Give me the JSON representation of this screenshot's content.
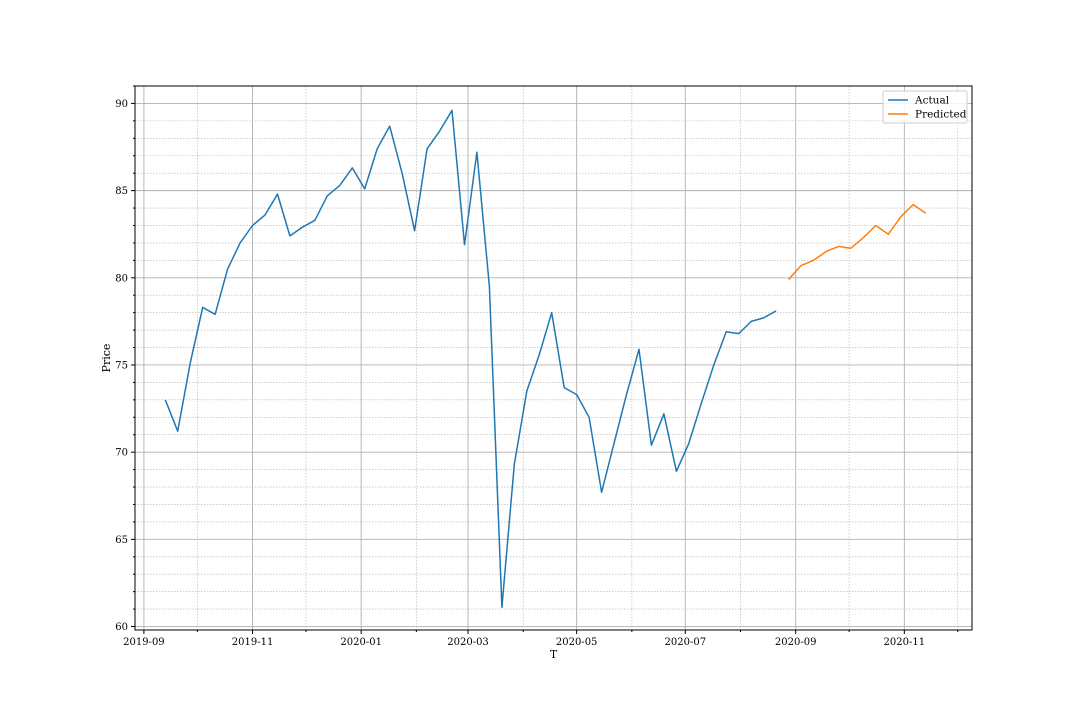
{
  "chart_data": {
    "type": "line",
    "title": "",
    "xlabel": "T",
    "ylabel": "Price",
    "x_scale": "date",
    "xlim": [
      "2019-08-27",
      "2020-12-09"
    ],
    "ylim": [
      59.8,
      91.0
    ],
    "x_ticks": [
      "2019-09-01",
      "2019-11-01",
      "2020-01-01",
      "2020-03-01",
      "2020-05-01",
      "2020-07-01",
      "2020-09-01",
      "2020-11-01"
    ],
    "x_tick_labels": [
      "2019-09",
      "2019-11",
      "2020-01",
      "2020-03",
      "2020-05",
      "2020-07",
      "2020-09",
      "2020-11"
    ],
    "y_ticks": [
      60,
      65,
      70,
      75,
      80,
      85,
      90
    ],
    "y_tick_labels": [
      "60",
      "65",
      "70",
      "75",
      "80",
      "85",
      "90"
    ],
    "grid": {
      "major": true,
      "minor": true
    },
    "legend_position": "top-right",
    "series": [
      {
        "name": "Actual",
        "color": "#1f77b4",
        "x": [
          "2019-09-13",
          "2019-09-20",
          "2019-09-27",
          "2019-10-04",
          "2019-10-11",
          "2019-10-18",
          "2019-10-25",
          "2019-11-01",
          "2019-11-08",
          "2019-11-15",
          "2019-11-22",
          "2019-11-29",
          "2019-12-06",
          "2019-12-13",
          "2019-12-20",
          "2019-12-27",
          "2020-01-03",
          "2020-01-10",
          "2020-01-17",
          "2020-01-24",
          "2020-01-31",
          "2020-02-07",
          "2020-02-14",
          "2020-02-21",
          "2020-02-28",
          "2020-03-06",
          "2020-03-13",
          "2020-03-20",
          "2020-03-27",
          "2020-04-03",
          "2020-04-10",
          "2020-04-17",
          "2020-04-24",
          "2020-05-01",
          "2020-05-08",
          "2020-05-15",
          "2020-05-22",
          "2020-05-29",
          "2020-06-05",
          "2020-06-12",
          "2020-06-19",
          "2020-06-26",
          "2020-07-03",
          "2020-07-10",
          "2020-07-17",
          "2020-07-24",
          "2020-07-31",
          "2020-08-07",
          "2020-08-14",
          "2020-08-21"
        ],
        "y": [
          73.0,
          71.2,
          75.1,
          78.3,
          77.9,
          80.5,
          82.0,
          83.0,
          83.6,
          84.8,
          82.4,
          82.9,
          83.3,
          84.7,
          85.3,
          86.3,
          85.1,
          87.4,
          88.7,
          86.0,
          82.7,
          87.4,
          88.4,
          89.6,
          81.9,
          87.2,
          79.5,
          61.1,
          69.3,
          73.5,
          75.6,
          78.0,
          73.7,
          73.3,
          72.0,
          67.7,
          70.5,
          73.3,
          75.9,
          70.4,
          72.2,
          68.9,
          70.5,
          72.8,
          75.0,
          76.9,
          76.8,
          77.5,
          77.7,
          78.1
        ]
      },
      {
        "name": "Predicted",
        "color": "#ff7f0e",
        "x": [
          "2020-08-28",
          "2020-09-04",
          "2020-09-11",
          "2020-09-18",
          "2020-09-25",
          "2020-10-02",
          "2020-10-09",
          "2020-10-16",
          "2020-10-23",
          "2020-10-30",
          "2020-11-06",
          "2020-11-13"
        ],
        "y": [
          79.9,
          80.7,
          81.0,
          81.5,
          81.8,
          81.7,
          82.3,
          83.0,
          82.5,
          83.5,
          84.2,
          83.7
        ]
      }
    ]
  }
}
